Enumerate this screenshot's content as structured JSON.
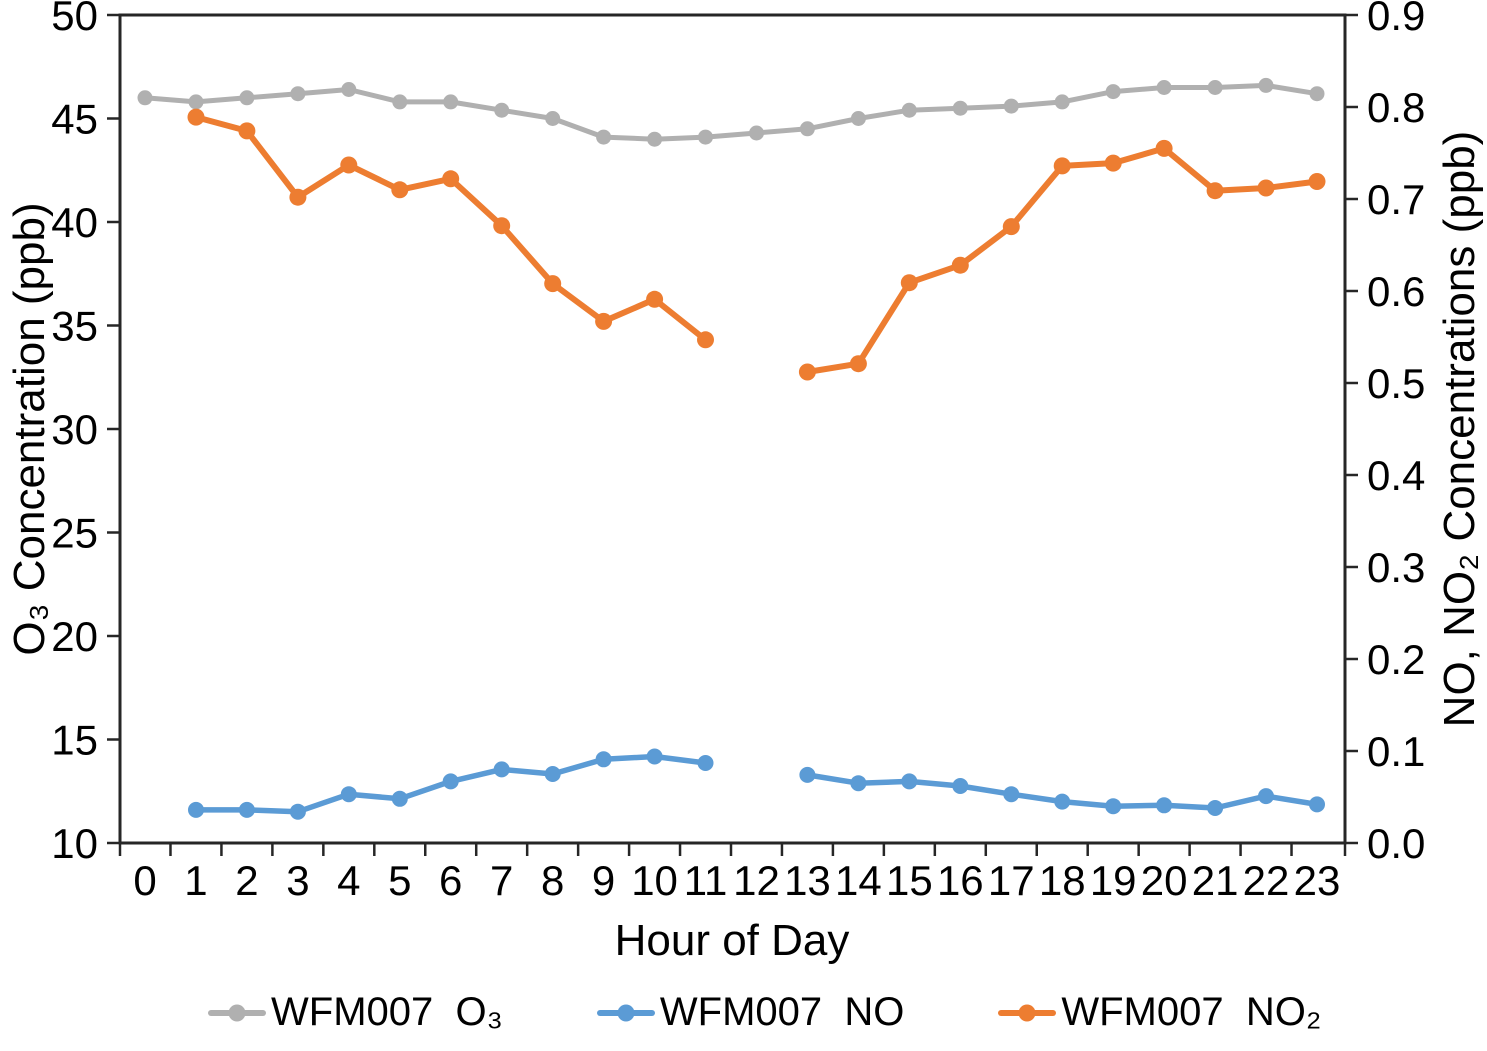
{
  "chart_data": {
    "type": "line",
    "xlabel": "Hour of Day",
    "ylabel_left": "O₃ Concentration (ppb)",
    "ylabel_right": "NO, NO₂ Concentrations (ppb)",
    "ylim_left": [
      10,
      50
    ],
    "ylim_right": [
      0.0,
      0.9
    ],
    "yticks_left": [
      10,
      15,
      20,
      25,
      30,
      35,
      40,
      45,
      50
    ],
    "yticks_right": [
      "0.0",
      "0.1",
      "0.2",
      "0.3",
      "0.4",
      "0.5",
      "0.6",
      "0.7",
      "0.8",
      "0.9"
    ],
    "xticks": [
      0,
      1,
      2,
      3,
      4,
      5,
      6,
      7,
      8,
      9,
      10,
      11,
      12,
      13,
      14,
      15,
      16,
      17,
      18,
      19,
      20,
      21,
      22,
      23
    ],
    "grid": false,
    "legend_position": "bottom",
    "frame_color": "#262626",
    "series": [
      {
        "name": "WFM007  O₃",
        "axis": "left",
        "color": "#B0B0B0",
        "x": [
          0,
          1,
          2,
          3,
          4,
          5,
          6,
          7,
          8,
          9,
          10,
          11,
          12,
          13,
          14,
          15,
          16,
          17,
          18,
          19,
          20,
          21,
          22,
          23
        ],
        "values": [
          46.0,
          45.8,
          46.0,
          46.2,
          46.4,
          45.8,
          45.8,
          45.4,
          45.0,
          44.1,
          44.0,
          44.1,
          44.3,
          44.5,
          45.0,
          45.4,
          45.5,
          45.6,
          45.8,
          46.3,
          46.5,
          46.5,
          46.6,
          46.2
        ]
      },
      {
        "name": "WFM007  NO",
        "axis": "right",
        "color": "#5B9BD5",
        "x": [
          0,
          1,
          2,
          3,
          4,
          5,
          6,
          7,
          8,
          9,
          10,
          11,
          12,
          13,
          14,
          15,
          16,
          17,
          18,
          19,
          20,
          21,
          22,
          23
        ],
        "values": [
          null,
          0.036,
          0.036,
          0.034,
          0.053,
          0.048,
          0.067,
          0.08,
          0.075,
          0.091,
          0.094,
          0.087,
          null,
          0.074,
          0.065,
          0.067,
          0.062,
          0.053,
          0.045,
          0.04,
          0.041,
          0.038,
          0.051,
          0.042
        ]
      },
      {
        "name": "WFM007  NO₂",
        "axis": "right",
        "color": "#ED7D31",
        "x": [
          0,
          1,
          2,
          3,
          4,
          5,
          6,
          7,
          8,
          9,
          10,
          11,
          12,
          13,
          14,
          15,
          16,
          17,
          18,
          19,
          20,
          21,
          22,
          23
        ],
        "values": [
          null,
          0.789,
          0.774,
          0.702,
          0.737,
          0.71,
          0.722,
          0.671,
          0.608,
          0.567,
          0.591,
          0.547,
          null,
          0.512,
          0.521,
          0.609,
          0.628,
          0.67,
          0.736,
          0.739,
          0.755,
          0.709,
          0.712,
          0.719
        ]
      }
    ]
  }
}
